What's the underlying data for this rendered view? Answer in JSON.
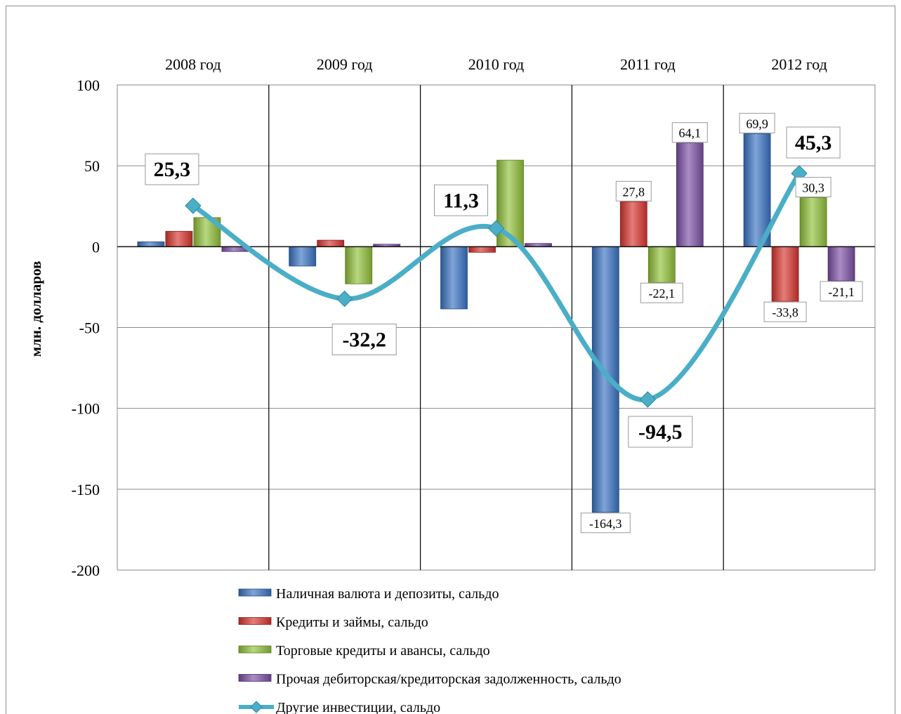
{
  "chart_data": {
    "type": "bar",
    "categories": [
      "2008 год",
      "2009 год",
      "2010 год",
      "2011 год",
      "2012 год"
    ],
    "ylabel": "млн. долларов",
    "ylim": [
      -200,
      100
    ],
    "yticks": [
      "100",
      "50",
      "0",
      "-50",
      "-100",
      "-150",
      "-200"
    ],
    "ytick_values": [
      100,
      50,
      0,
      -50,
      -100,
      -150,
      -200
    ],
    "grid": true,
    "legend_position": "bottom",
    "series": [
      {
        "name": "Наличная валюта и депозиты, сальдо",
        "kind": "bar",
        "color": "#3a74c4",
        "values": [
          3,
          -12,
          -38.5,
          -164.3,
          69.9
        ],
        "labels": [
          "",
          "",
          "",
          "-164,3",
          "69,9"
        ]
      },
      {
        "name": "Кредиты и займы, сальдо",
        "kind": "bar",
        "color": "#d9352f",
        "values": [
          9.5,
          4,
          -3.5,
          27.8,
          -33.8
        ],
        "labels": [
          "",
          "",
          "",
          "27,8",
          "-33,8"
        ]
      },
      {
        "name": "Торговые кредиты и авансы, сальдо",
        "kind": "bar",
        "color": "#92c13a",
        "values": [
          18,
          -23,
          53.5,
          -22.1,
          30.3
        ],
        "labels": [
          "",
          "",
          "",
          "-22,1",
          "30,3"
        ]
      },
      {
        "name": "Прочая дебиторская/кредиторская задолженность, сальдо",
        "kind": "bar",
        "color": "#7d4fa6",
        "values": [
          -3,
          1.5,
          2,
          64.1,
          -21.1
        ],
        "labels": [
          "",
          "",
          "",
          "64,1",
          "-21,1"
        ]
      },
      {
        "name": "Другие инвестиции, сальдо",
        "kind": "line",
        "color": "#4aaec7",
        "values": [
          25.3,
          -32.2,
          11.3,
          -94.5,
          45.3
        ],
        "labels": [
          "25,3",
          "-32,2",
          "11,3",
          "-94,5",
          "45,3"
        ]
      }
    ]
  }
}
